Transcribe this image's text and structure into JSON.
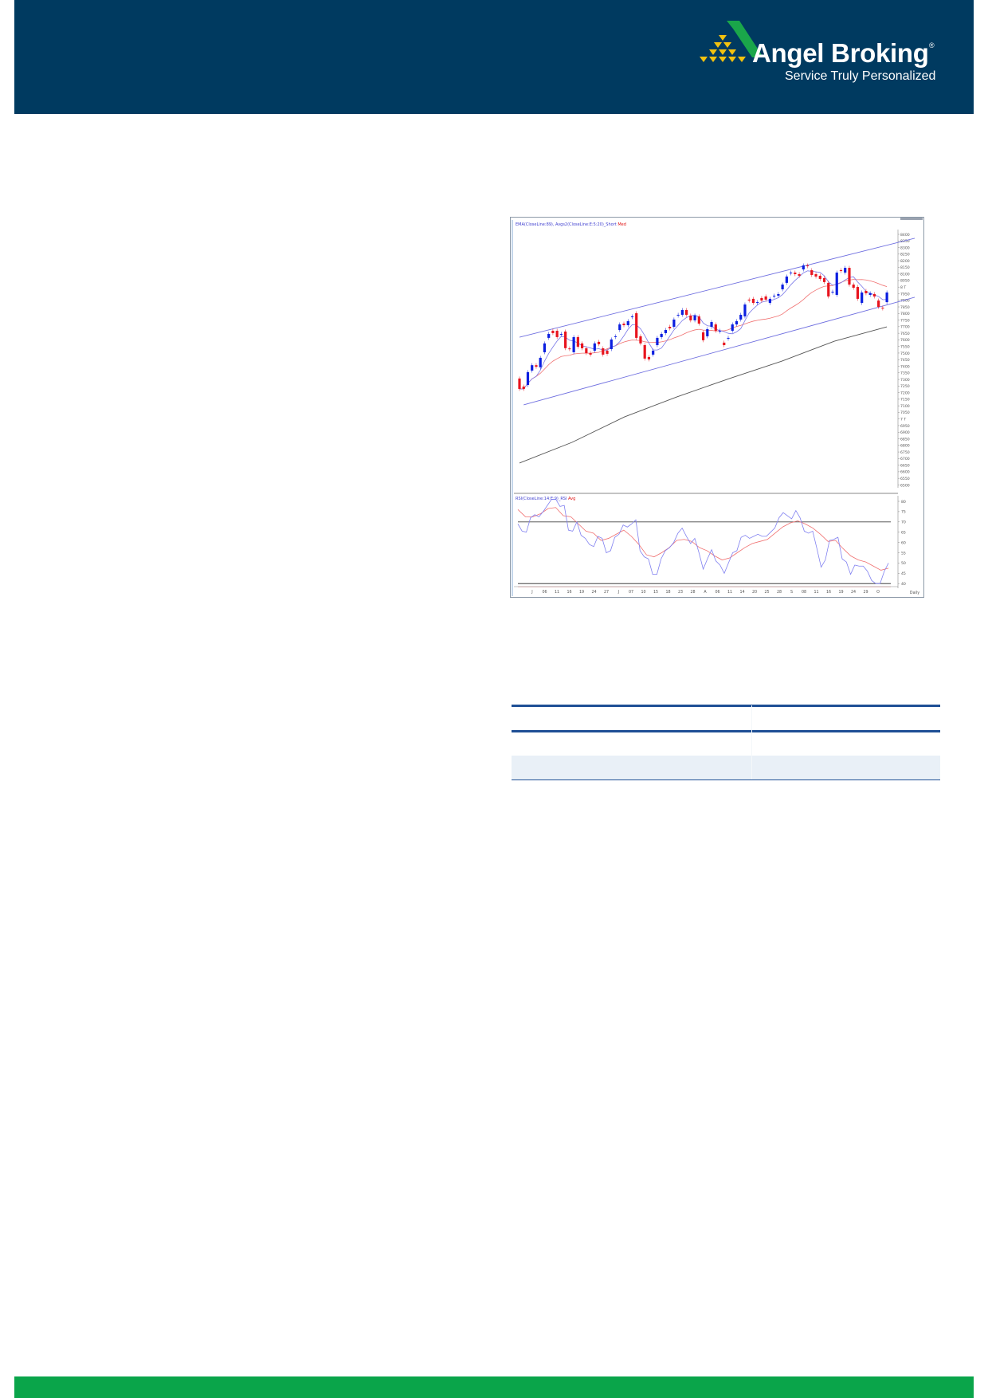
{
  "header": {
    "brand_name": "Angel Broking",
    "brand_registered": "®",
    "brand_tagline": "Service Truly Personalized",
    "background_color": "#003a60",
    "logo_colors": {
      "triangle": "#1aa64a",
      "pyramid": "#f2c20f"
    }
  },
  "footer": {
    "background_color": "#0aa54a"
  },
  "table": {
    "rule_color": "#1e4f95",
    "shade_color": "#e9f0f7"
  },
  "chart_data": {
    "type": "candlestick",
    "legend_price": {
      "main": "EMA(CloseLine:89), Avgs2(CloseLine:E:5:20)_Short",
      "accent": "Med"
    },
    "legend_rsi": {
      "main": "RSI(CloseLine:14:E:9)_RSI",
      "accent": "Avg"
    },
    "price_axis": {
      "min": 6500,
      "max": 8400,
      "step": 50,
      "thousand_labels": {
        "8000": "8 T",
        "7000": "7 T"
      }
    },
    "rsi_axis": {
      "min": 40,
      "max": 80,
      "ticks": [
        80,
        75,
        70,
        65,
        60,
        55,
        50,
        45,
        40
      ],
      "levels": [
        70,
        40
      ]
    },
    "x_tick_labels": [
      "J",
      "06",
      "11",
      "16",
      "19",
      "24",
      "27",
      "J",
      "07",
      "10",
      "15",
      "18",
      "23",
      "28",
      "A",
      "06",
      "11",
      "14",
      "20",
      "25",
      "28",
      "S",
      "08",
      "11",
      "16",
      "19",
      "24",
      "29",
      "O"
    ],
    "x_period_label": "Daily",
    "colors": {
      "up": "#0a1ee0",
      "down": "#e8141e",
      "short_avg": "#7a78e8",
      "med_avg": "#f07070",
      "ema89": "#555555",
      "channel": "#7070e0",
      "rsi": "#8080f0",
      "rsi_avg": "#f07070"
    },
    "candles_open_close": [
      [
        7307,
        7228
      ],
      [
        7246,
        7228
      ],
      [
        7258,
        7355
      ],
      [
        7367,
        7408
      ],
      [
        7408,
        7396
      ],
      [
        7392,
        7464
      ],
      [
        7506,
        7573
      ],
      [
        7615,
        7645
      ],
      [
        7669,
        7651
      ],
      [
        7669,
        7621
      ],
      [
        7639,
        7645
      ],
      [
        7663,
        7537
      ],
      [
        7535,
        7530
      ],
      [
        7506,
        7621
      ],
      [
        7621,
        7548
      ],
      [
        7573,
        7536
      ],
      [
        7536,
        7500
      ],
      [
        7500,
        7488
      ],
      [
        7518,
        7573
      ],
      [
        7585,
        7567
      ],
      [
        7536,
        7488
      ],
      [
        7518,
        7494
      ],
      [
        7530,
        7603
      ],
      [
        7621,
        7627
      ],
      [
        7675,
        7717
      ],
      [
        7723,
        7711
      ],
      [
        7711,
        7742
      ],
      [
        7772,
        7778
      ],
      [
        7802,
        7615
      ],
      [
        7627,
        7573
      ],
      [
        7560,
        7458
      ],
      [
        7470,
        7452
      ],
      [
        7488,
        7518
      ],
      [
        7560,
        7615
      ],
      [
        7621,
        7645
      ],
      [
        7651,
        7675
      ],
      [
        7699,
        7687
      ],
      [
        7699,
        7754
      ],
      [
        7784,
        7790
      ],
      [
        7790,
        7826
      ],
      [
        7826,
        7790
      ],
      [
        7784,
        7748
      ],
      [
        7748,
        7784
      ],
      [
        7778,
        7723
      ],
      [
        7657,
        7597
      ],
      [
        7627,
        7681
      ],
      [
        7699,
        7735
      ],
      [
        7717,
        7669
      ],
      [
        7663,
        7669
      ],
      [
        7579,
        7560
      ],
      [
        7609,
        7615
      ],
      [
        7669,
        7717
      ],
      [
        7717,
        7742
      ],
      [
        7754,
        7790
      ],
      [
        7778,
        7868
      ],
      [
        7905,
        7898
      ],
      [
        7911,
        7880
      ],
      [
        7880,
        7886
      ],
      [
        7917,
        7898
      ],
      [
        7929,
        7905
      ],
      [
        7880,
        7911
      ],
      [
        7929,
        7935
      ],
      [
        7935,
        7947
      ],
      [
        7983,
        8019
      ],
      [
        8032,
        8080
      ],
      [
        8104,
        8110
      ],
      [
        8110,
        8098
      ],
      [
        8098,
        8086
      ],
      [
        8134,
        8164
      ],
      [
        8164,
        8158
      ],
      [
        8128,
        8092
      ],
      [
        8098,
        8080
      ],
      [
        8086,
        8062
      ],
      [
        8068,
        8038
      ],
      [
        8032,
        7929
      ],
      [
        7959,
        7965
      ],
      [
        7941,
        8110
      ],
      [
        8128,
        8122
      ],
      [
        8110,
        8146
      ],
      [
        8146,
        8019
      ],
      [
        8019,
        7995
      ],
      [
        8001,
        7911
      ],
      [
        7880,
        7959
      ],
      [
        7971,
        7953
      ],
      [
        7941,
        7953
      ],
      [
        7947,
        7929
      ],
      [
        7898,
        7850
      ],
      [
        7844,
        7838
      ],
      [
        7886,
        7959
      ]
    ],
    "ema89_samples": [
      6666,
      6823,
      7016,
      7168,
      7307,
      7439,
      7590,
      7699
    ],
    "channel_upper": [
      7620,
      8370
    ],
    "channel_lower": [
      7107,
      7923
    ],
    "rsi": [
      69,
      65.5,
      65,
      72,
      73.5,
      72.5,
      75,
      78,
      81,
      81,
      77.5,
      78,
      66,
      65.5,
      70,
      63.5,
      62,
      59,
      58,
      63,
      62,
      55,
      56,
      62.5,
      64,
      68.5,
      67.5,
      69,
      71,
      56,
      53,
      52,
      44.5,
      44.5,
      52,
      56,
      57.5,
      60,
      64.5,
      67,
      63,
      59.5,
      62,
      55,
      47,
      52,
      56.5,
      51,
      49,
      45,
      50,
      55,
      56,
      62.5,
      63.5,
      62,
      63,
      64,
      63,
      63,
      65,
      67,
      72,
      74.5,
      73,
      71.5,
      75.5,
      72,
      65.5,
      64.5,
      65.5,
      57,
      48,
      51.5,
      61,
      61.5,
      62.5,
      52,
      50.5,
      44.5,
      49,
      48.5,
      48.5,
      46,
      41.5,
      40,
      40,
      46,
      50
    ],
    "rsi_avg": [
      76,
      72.5,
      72.5,
      74,
      76.5,
      77,
      73,
      72.5,
      69,
      65.5,
      64.5,
      61,
      62,
      64,
      66,
      63,
      59,
      54,
      53,
      55,
      57.5,
      61,
      61.5,
      60.5,
      57.5,
      56,
      53.5,
      51.5,
      52.5,
      55,
      57.5,
      59.5,
      60.5,
      61.5,
      64.5,
      67.5,
      69.5,
      70.5,
      69,
      67,
      64,
      60.5,
      61,
      57,
      53.5,
      51.5,
      50.5,
      48.5,
      46.5,
      47.5
    ]
  }
}
